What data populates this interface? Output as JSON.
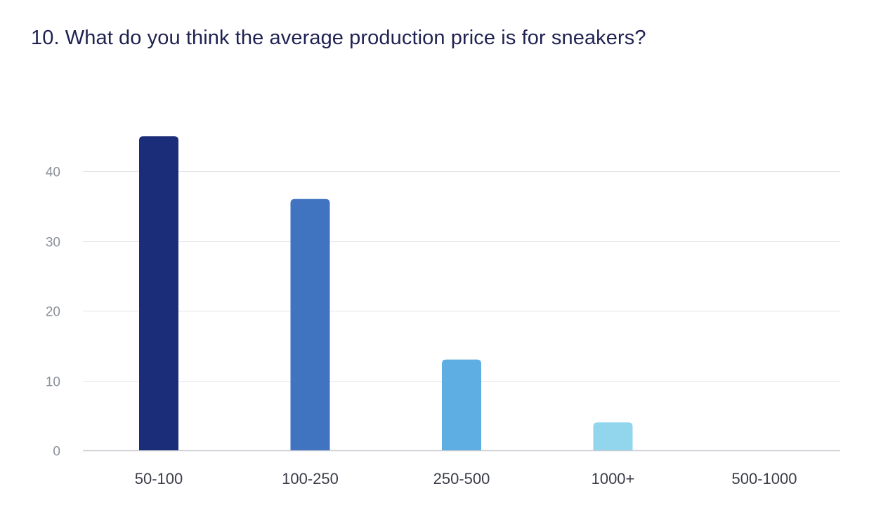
{
  "chart_data": {
    "type": "bar",
    "title": "10. What do you think the average production price is for sneakers?",
    "categories": [
      "50-100",
      "100-250",
      "250-500",
      "1000+",
      "500-1000"
    ],
    "values": [
      45,
      36,
      13,
      4,
      0
    ],
    "ylim": [
      0,
      48
    ],
    "yticks": [
      0,
      10,
      20,
      30,
      40
    ],
    "grid": true,
    "colors": [
      "#1b2d78",
      "#4174c0",
      "#5faee3",
      "#92d6ee",
      "#c9ecf7"
    ]
  }
}
